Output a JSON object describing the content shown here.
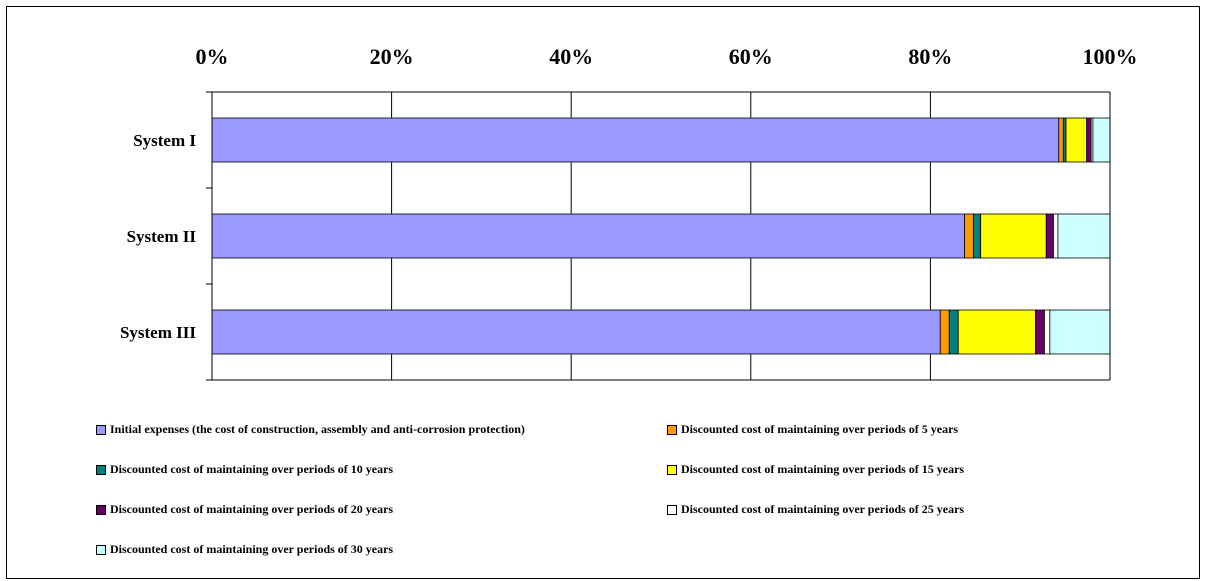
{
  "chart_data": {
    "type": "bar",
    "orientation": "horizontal",
    "stacked": "percent",
    "categories": [
      "System I",
      "System II",
      "System III"
    ],
    "x_ticks": [
      "0%",
      "20%",
      "40%",
      "60%",
      "80%",
      "100%"
    ],
    "xlim": [
      0,
      100
    ],
    "x_axis_position": "top",
    "grid": true,
    "legend_position": "bottom",
    "series": [
      {
        "name": "Initial expenses (the cost of construction, assembly and anti-corrosion protection)",
        "color": "#9999ff",
        "values": [
          94.3,
          83.8,
          81.1
        ]
      },
      {
        "name": "Discounted cost of maintaining over periods of 5 years",
        "color": "#ff9900",
        "values": [
          0.5,
          1.0,
          1.0
        ]
      },
      {
        "name": "Discounted cost of maintaining over periods of 10 years",
        "color": "#008080",
        "values": [
          0.3,
          0.8,
          1.0
        ]
      },
      {
        "name": "Discounted cost of maintaining over periods of 15 years",
        "color": "#ffff00",
        "values": [
          2.3,
          7.3,
          8.6
        ]
      },
      {
        "name": "Discounted cost of maintaining over periods of 20 years",
        "color": "#660066",
        "values": [
          0.5,
          0.8,
          1.0
        ]
      },
      {
        "name": "Discounted cost of maintaining over periods of 25 years",
        "color": "#ffffff",
        "values": [
          0.2,
          0.5,
          0.6
        ]
      },
      {
        "name": "Discounted cost of maintaining over periods of 30 years",
        "color": "#ccffff",
        "values": [
          1.9,
          5.8,
          6.7
        ]
      }
    ]
  }
}
